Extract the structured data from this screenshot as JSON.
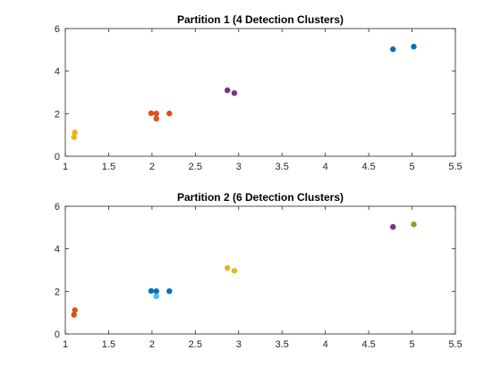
{
  "chart_data": [
    {
      "type": "scatter",
      "title": "Partition 1 (4 Detection Clusters)",
      "xlim": [
        1,
        5.5
      ],
      "ylim": [
        0,
        6
      ],
      "xticks": [
        "1",
        "1.5",
        "2",
        "2.5",
        "3",
        "3.5",
        "4",
        "4.5",
        "5",
        "5.5"
      ],
      "yticks": [
        "0",
        "2",
        "4",
        "6"
      ],
      "grid": false,
      "series": [
        {
          "color": "#EDB120",
          "points": [
            [
              1.1,
              0.9
            ],
            [
              1.11,
              1.12
            ]
          ]
        },
        {
          "color": "#D95319",
          "points": [
            [
              1.99,
              2.02
            ],
            [
              2.05,
              2.01
            ],
            [
              2.05,
              1.77
            ],
            [
              2.2,
              2.01
            ]
          ]
        },
        {
          "color": "#7E2F8E",
          "points": [
            [
              2.87,
              3.1
            ],
            [
              2.95,
              2.97
            ]
          ]
        },
        {
          "color": "#0072BD",
          "points": [
            [
              4.78,
              5.03
            ],
            [
              5.02,
              5.15
            ]
          ]
        }
      ]
    },
    {
      "type": "scatter",
      "title": "Partition 2 (6 Detection Clusters)",
      "xlim": [
        1,
        5.5
      ],
      "ylim": [
        0,
        6
      ],
      "xticks": [
        "1",
        "1.5",
        "2",
        "2.5",
        "3",
        "3.5",
        "4",
        "4.5",
        "5",
        "5.5"
      ],
      "yticks": [
        "0",
        "2",
        "4",
        "6"
      ],
      "grid": false,
      "series": [
        {
          "color": "#D95319",
          "points": [
            [
              1.1,
              0.9
            ],
            [
              1.11,
              1.12
            ]
          ]
        },
        {
          "color": "#0072BD",
          "points": [
            [
              1.99,
              2.02
            ],
            [
              2.05,
              2.01
            ],
            [
              2.2,
              2.01
            ]
          ]
        },
        {
          "color": "#4DBEEE",
          "points": [
            [
              2.05,
              1.77
            ]
          ]
        },
        {
          "color": "#EDB120",
          "points": [
            [
              2.87,
              3.1
            ],
            [
              2.95,
              2.97
            ]
          ]
        },
        {
          "color": "#7E2F8E",
          "points": [
            [
              4.78,
              5.03
            ]
          ]
        },
        {
          "color": "#77AC30",
          "points": [
            [
              5.02,
              5.15
            ]
          ]
        }
      ]
    }
  ]
}
